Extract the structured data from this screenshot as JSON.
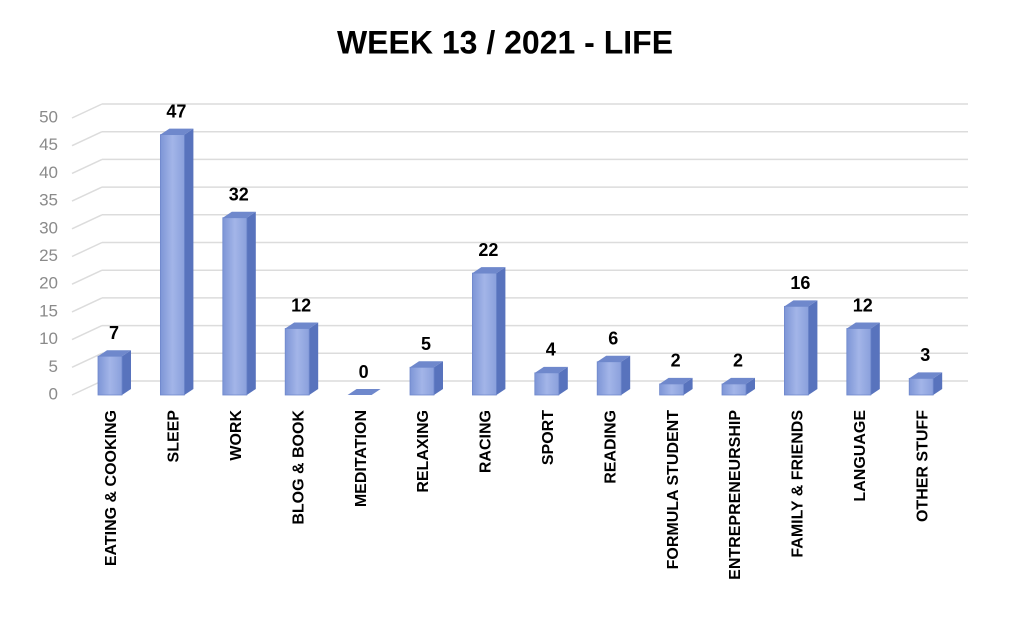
{
  "chart_data": {
    "type": "bar",
    "title": "WEEK 13  / 2021 - LIFE",
    "categories": [
      "EATING & COOKING",
      "SLEEP",
      "WORK",
      "BLOG & BOOK",
      "MEDITATION",
      "RELAXING",
      "RACING",
      "SPORT",
      "READING",
      "FORMULA STUDENT",
      "ENTREPRENEURSHIP",
      "FAMILY & FRIENDS",
      "LANGUAGE",
      "OTHER STUFF"
    ],
    "values": [
      7,
      47,
      32,
      12,
      0,
      5,
      22,
      4,
      6,
      2,
      2,
      16,
      12,
      3
    ],
    "color": "#8ea4dc",
    "ylim": [
      0,
      50
    ],
    "yticks": [
      0,
      5,
      10,
      15,
      20,
      25,
      30,
      35,
      40,
      45,
      50
    ],
    "grid": true
  }
}
